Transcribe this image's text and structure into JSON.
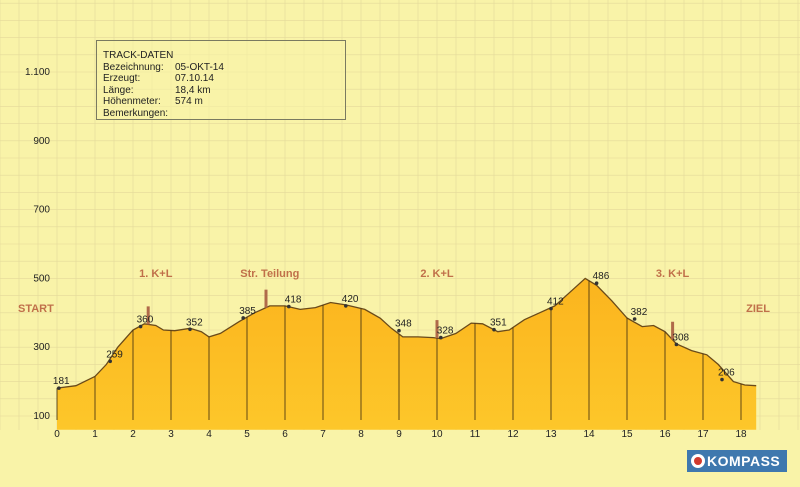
{
  "info": {
    "title": "TRACK-DATEN",
    "rows": [
      {
        "key": "Bezeichnung:",
        "value": "05-OKT-14"
      },
      {
        "key": "Erzeugt:",
        "value": "07.10.14"
      },
      {
        "key": "Länge:",
        "value": "18,4 km"
      },
      {
        "key": "Höhenmeter:",
        "value": "574 m"
      },
      {
        "key": "Bemerkungen:",
        "value": ""
      }
    ]
  },
  "logo": {
    "text": "KOMPASS",
    "icon": "kompass-logo-icon"
  },
  "colors": {
    "background": "#f9f3a8",
    "fill": "#fdc72a",
    "fill_top": "#fbb41e",
    "outline": "#6a4a1a",
    "grid": "#e3d99a",
    "marker_label": "#c0704a",
    "axis_text": "#222222"
  },
  "chart_data": {
    "type": "area",
    "title": "",
    "xlabel": "",
    "ylabel": "",
    "xlim": [
      0,
      18.4
    ],
    "ylim": [
      100,
      1100
    ],
    "x_ticks": [
      0,
      1,
      2,
      3,
      4,
      5,
      6,
      7,
      8,
      9,
      10,
      11,
      12,
      13,
      14,
      15,
      16,
      17,
      18
    ],
    "y_ticks": [
      100,
      300,
      500,
      700,
      900,
      1100
    ],
    "y_tick_labels": [
      "100",
      "300",
      "500",
      "700",
      "900",
      "1.100"
    ],
    "grid": true,
    "profile": [
      {
        "x": 0.0,
        "y": 181
      },
      {
        "x": 0.5,
        "y": 188
      },
      {
        "x": 1.0,
        "y": 215
      },
      {
        "x": 1.3,
        "y": 250
      },
      {
        "x": 1.6,
        "y": 300
      },
      {
        "x": 2.0,
        "y": 350
      },
      {
        "x": 2.3,
        "y": 368
      },
      {
        "x": 2.6,
        "y": 363
      },
      {
        "x": 2.8,
        "y": 350
      },
      {
        "x": 3.1,
        "y": 348
      },
      {
        "x": 3.5,
        "y": 355
      },
      {
        "x": 3.8,
        "y": 345
      },
      {
        "x": 4.0,
        "y": 330
      },
      {
        "x": 4.3,
        "y": 340
      },
      {
        "x": 4.8,
        "y": 375
      },
      {
        "x": 5.2,
        "y": 400
      },
      {
        "x": 5.6,
        "y": 420
      },
      {
        "x": 6.0,
        "y": 420
      },
      {
        "x": 6.4,
        "y": 410
      },
      {
        "x": 6.8,
        "y": 415
      },
      {
        "x": 7.2,
        "y": 430
      },
      {
        "x": 7.6,
        "y": 423
      },
      {
        "x": 8.1,
        "y": 410
      },
      {
        "x": 8.5,
        "y": 385
      },
      {
        "x": 8.8,
        "y": 355
      },
      {
        "x": 9.1,
        "y": 330
      },
      {
        "x": 9.5,
        "y": 330
      },
      {
        "x": 9.9,
        "y": 328
      },
      {
        "x": 10.1,
        "y": 325
      },
      {
        "x": 10.5,
        "y": 340
      },
      {
        "x": 10.9,
        "y": 370
      },
      {
        "x": 11.2,
        "y": 368
      },
      {
        "x": 11.6,
        "y": 345
      },
      {
        "x": 11.9,
        "y": 350
      },
      {
        "x": 12.3,
        "y": 380
      },
      {
        "x": 12.7,
        "y": 400
      },
      {
        "x": 13.1,
        "y": 420
      },
      {
        "x": 13.5,
        "y": 460
      },
      {
        "x": 13.9,
        "y": 500
      },
      {
        "x": 14.2,
        "y": 480
      },
      {
        "x": 14.6,
        "y": 435
      },
      {
        "x": 15.0,
        "y": 385
      },
      {
        "x": 15.4,
        "y": 360
      },
      {
        "x": 15.7,
        "y": 363
      },
      {
        "x": 16.0,
        "y": 345
      },
      {
        "x": 16.3,
        "y": 310
      },
      {
        "x": 16.7,
        "y": 290
      },
      {
        "x": 17.1,
        "y": 278
      },
      {
        "x": 17.4,
        "y": 250
      },
      {
        "x": 17.8,
        "y": 200
      },
      {
        "x": 18.1,
        "y": 190
      },
      {
        "x": 18.4,
        "y": 188
      }
    ],
    "point_labels": [
      {
        "x": 0.05,
        "y": 181,
        "label": "181"
      },
      {
        "x": 1.4,
        "y": 259,
        "label": "259"
      },
      {
        "x": 2.2,
        "y": 360,
        "label": "360"
      },
      {
        "x": 3.5,
        "y": 352,
        "label": "352"
      },
      {
        "x": 4.9,
        "y": 385,
        "label": "385"
      },
      {
        "x": 6.1,
        "y": 418,
        "label": "418"
      },
      {
        "x": 7.6,
        "y": 420,
        "label": "420"
      },
      {
        "x": 9.0,
        "y": 348,
        "label": "348"
      },
      {
        "x": 10.1,
        "y": 328,
        "label": "328"
      },
      {
        "x": 11.5,
        "y": 351,
        "label": "351"
      },
      {
        "x": 13.0,
        "y": 412,
        "label": "412"
      },
      {
        "x": 14.2,
        "y": 486,
        "label": "486"
      },
      {
        "x": 15.2,
        "y": 382,
        "label": "382"
      },
      {
        "x": 16.3,
        "y": 308,
        "label": "308"
      },
      {
        "x": 17.5,
        "y": 206,
        "label": "206"
      }
    ],
    "annotations": [
      {
        "x": 0,
        "label": "START"
      },
      {
        "x": 2.6,
        "label": "1. K+L"
      },
      {
        "x": 5.6,
        "label": "Str. Teilung"
      },
      {
        "x": 10.0,
        "label": "2. K+L"
      },
      {
        "x": 16.2,
        "label": "3. K+L"
      },
      {
        "x": 18.4,
        "label": "ZIEL"
      }
    ],
    "markers": [
      2.4,
      5.5,
      10.0,
      16.2
    ]
  }
}
